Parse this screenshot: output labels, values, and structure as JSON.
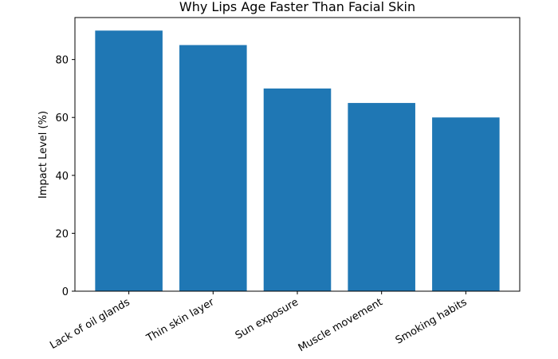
{
  "chart_data": {
    "type": "bar",
    "title": "Why Lips Age Faster Than Facial Skin",
    "y_label": "Impact Level (%)",
    "categories": [
      "Lack of oil glands",
      "Thin skin layer",
      "Sun exposure",
      "Muscle movement",
      "Smoking habits"
    ],
    "values": [
      90,
      85,
      70,
      65,
      60
    ],
    "color": "#1f77b4",
    "ylim": [
      0,
      94.5
    ],
    "yticks": [
      0,
      20,
      40,
      60,
      80
    ],
    "grid": false
  }
}
